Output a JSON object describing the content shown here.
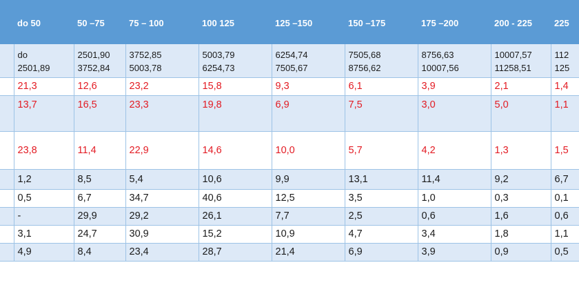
{
  "table": {
    "headers": [
      "",
      "do 50",
      "50  –75",
      "75 – 100",
      "100 125",
      "125 –150",
      "150 –175",
      "175 –200",
      "200 - 225",
      "225"
    ],
    "range_row": [
      [
        "",
        ""
      ],
      [
        "do",
        "2501,89"
      ],
      [
        "2501,90",
        "3752,84"
      ],
      [
        "3752,85",
        "5003,78"
      ],
      [
        "5003,79",
        "6254,73"
      ],
      [
        "6254,74",
        "7505,67"
      ],
      [
        "7505,68",
        "8756,62"
      ],
      [
        "8756,63",
        "10007,56"
      ],
      [
        "10007,57",
        "11258,51"
      ],
      [
        "112",
        "125"
      ]
    ],
    "rows": [
      {
        "color": "#e31b23",
        "cells": [
          "",
          "21,3",
          "12,6",
          "23,2",
          "15,8",
          "9,3",
          "6,1",
          "3,9",
          "2,1",
          "1,4"
        ]
      },
      {
        "color": "#e31b23",
        "cells": [
          "",
          "13,7",
          "16,5",
          "23,3",
          "19,8",
          "6,9",
          "7,5",
          "3,0",
          "5,0",
          "1,1"
        ]
      },
      {
        "color": "#e31b23",
        "cells": [
          "",
          "23,8",
          "11,4",
          "22,9",
          "14,6",
          "10,0",
          "5,7",
          "4,2",
          "1,3",
          "1,5"
        ]
      },
      {
        "color": "#1a1a1a",
        "cells": [
          "",
          "1,2",
          "8,5",
          "5,4",
          "10,6",
          "9,9",
          "13,1",
          "11,4",
          "9,2",
          "6,7"
        ]
      },
      {
        "color": "#1a1a1a",
        "cells": [
          "",
          "0,5",
          "6,7",
          "34,7",
          "40,6",
          "12,5",
          "3,5",
          "1,0",
          "0,3",
          "0,1"
        ]
      },
      {
        "color": "#1a1a1a",
        "cells": [
          "",
          "-",
          "29,9",
          "29,2",
          "26,1",
          "7,7",
          "2,5",
          "0,6",
          "1,6",
          "0,6"
        ]
      },
      {
        "color": "#1a1a1a",
        "cells": [
          "",
          "3,1",
          " 24,7",
          "30,9",
          "15,2",
          "10,9",
          "4,7",
          "3,4",
          "1,8",
          "1,1"
        ]
      },
      {
        "color": "#1a1a1a",
        "cells": [
          "",
          "4,9",
          "8,4",
          " 23,4",
          " 28,7",
          " 21,4",
          " 6,9",
          " 3,9",
          " 0,9",
          "0,5"
        ]
      }
    ],
    "colors": {
      "header_bg": "#5b9bd5",
      "band_bg": "#dde9f7",
      "border": "#9dc3e6",
      "highlight_text": "#e31b23"
    }
  }
}
